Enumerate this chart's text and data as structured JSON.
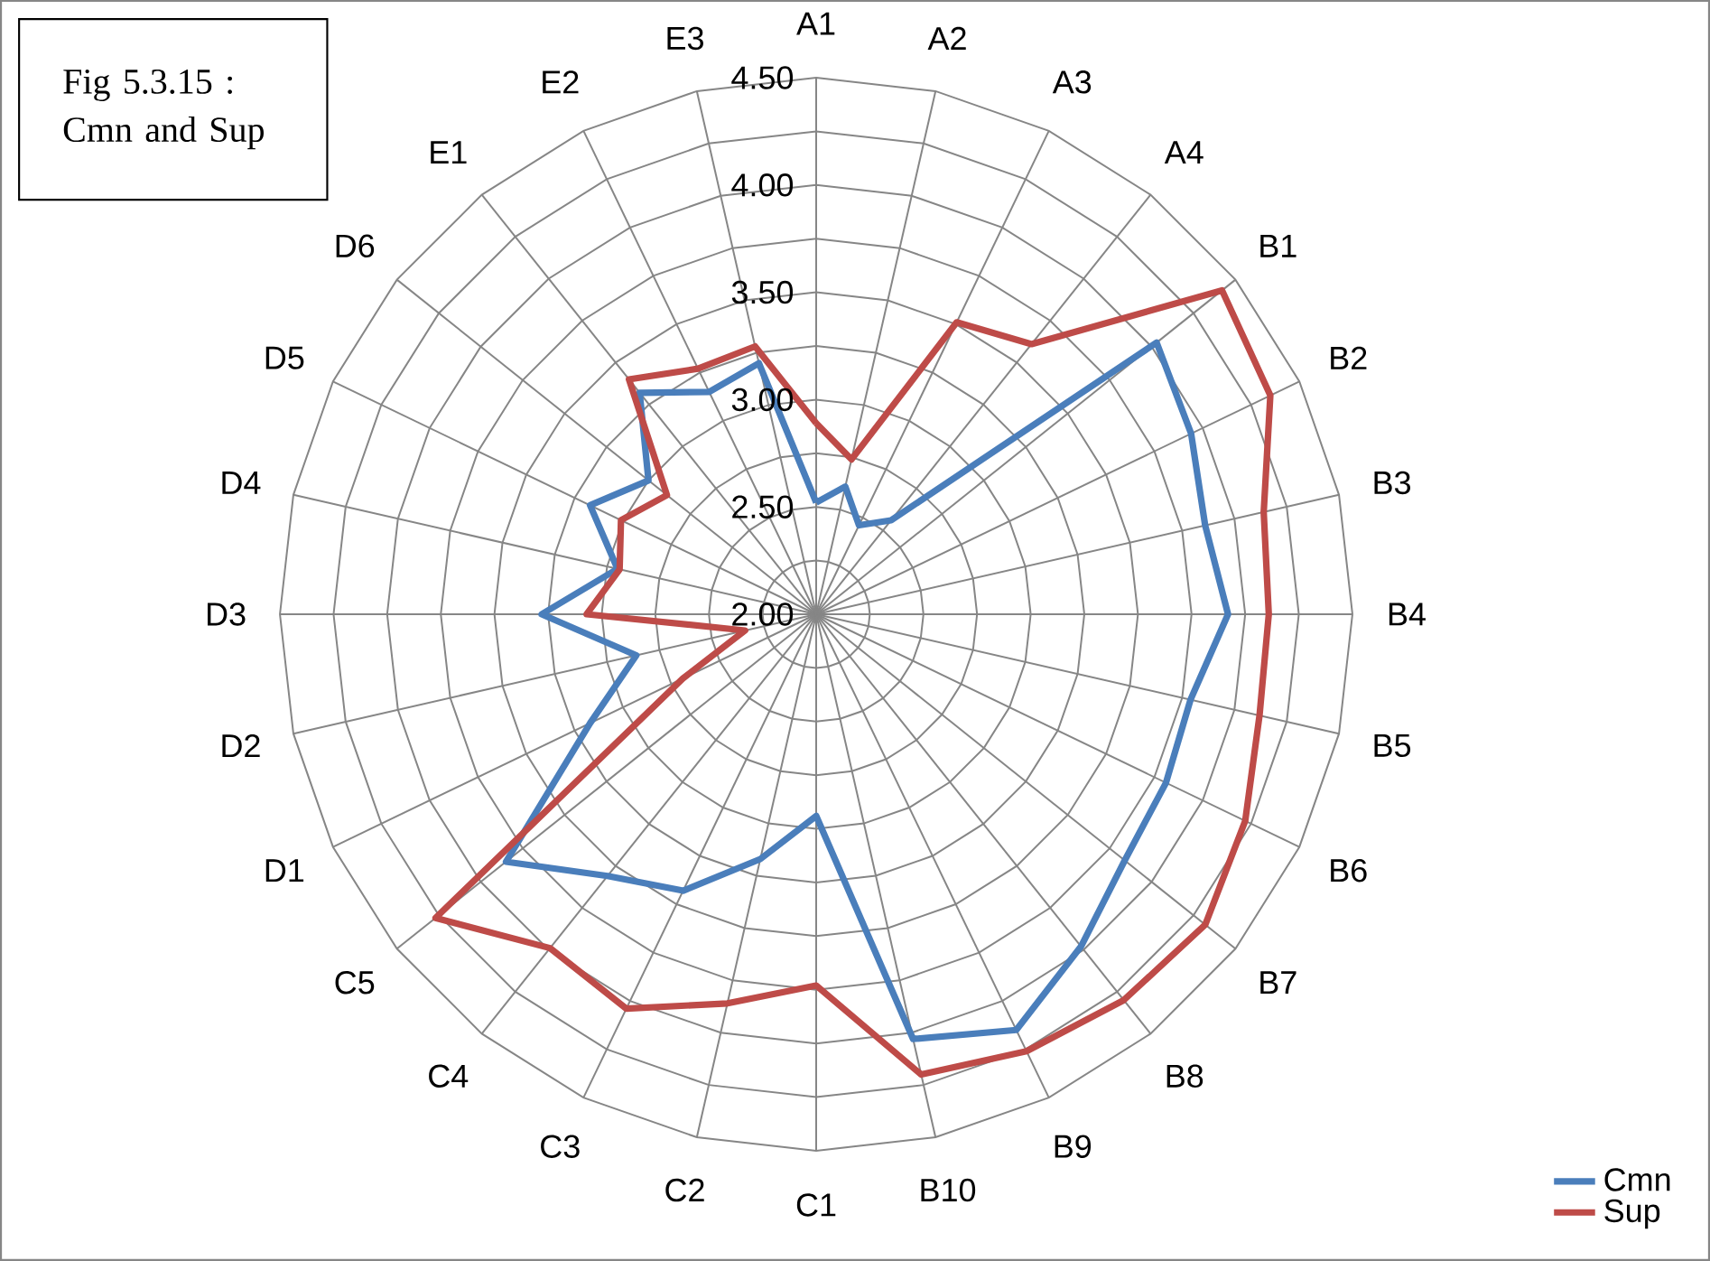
{
  "chart_data": {
    "type": "radar",
    "title": "Fig 5.3.15 : Cmn and Sup",
    "categories": [
      "A1",
      "A2",
      "A3",
      "A4",
      "B1",
      "B2",
      "B3",
      "B4",
      "B5",
      "B6",
      "B7",
      "B8",
      "B9",
      "B10",
      "C1",
      "C2",
      "C3",
      "C4",
      "C5",
      "D1",
      "D2",
      "D3",
      "D4",
      "D5",
      "D6",
      "E1",
      "E2",
      "E3"
    ],
    "series": [
      {
        "name": "Cmn",
        "color": "#4a7ebb",
        "values": [
          2.52,
          2.61,
          2.46,
          2.56,
          4.03,
          3.94,
          3.86,
          3.92,
          3.79,
          3.81,
          3.84,
          3.98,
          4.15,
          4.03,
          2.94,
          3.17,
          3.43,
          3.56,
          3.85,
          3.17,
          2.86,
          3.28,
          2.95,
          3.17,
          3.0,
          3.32,
          3.15,
          3.2
        ]
      },
      {
        "name": "Sup",
        "color": "#be4b48",
        "values": [
          2.89,
          2.74,
          3.51,
          3.61,
          4.42,
          4.35,
          4.14,
          4.11,
          4.12,
          4.22,
          4.32,
          4.3,
          4.26,
          4.2,
          3.73,
          3.86,
          4.04,
          3.99,
          4.27,
          2.69,
          2.34,
          3.07,
          2.94,
          3.01,
          2.89,
          3.4,
          3.27,
          3.28
        ]
      }
    ],
    "ylim": [
      2,
      4.5
    ],
    "yticks": [
      {
        "value": 2,
        "label": "2.00"
      },
      {
        "value": 2.5,
        "label": "2.50"
      },
      {
        "value": 3,
        "label": "3.00"
      },
      {
        "value": 3.5,
        "label": "3.50"
      },
      {
        "value": 4,
        "label": "4.00"
      },
      {
        "value": 4.5,
        "label": "4.50"
      }
    ],
    "grid": true,
    "legend": "bottom right"
  }
}
